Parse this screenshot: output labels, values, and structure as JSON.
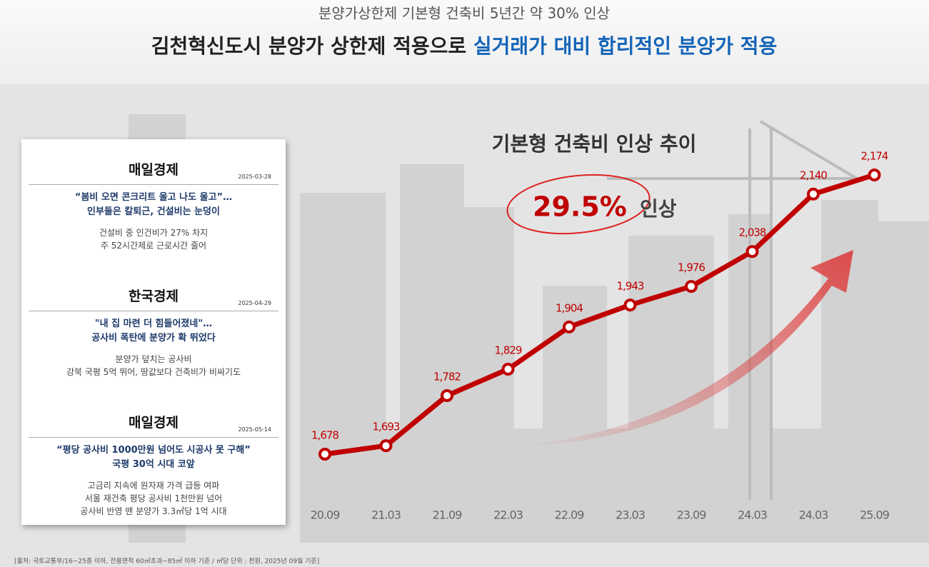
{
  "header": {
    "subtitle": "분양가상한제 기본형 건축비 5년간 약 30% 인상",
    "title_part1": "김천혁신도시 분양가 상한제 적용으로 ",
    "title_part2": "실거래가 대비 합리적인 분양가 적용"
  },
  "news": [
    {
      "outlet": "매일경제",
      "date": "2025-03-28",
      "headline": [
        "“봄비 오면 콘크리트 울고 나도 울고”…",
        "인부들은 칼퇴근, 건설비는 눈덩이"
      ],
      "body": [
        "건설비 중 인건비가 27% 차지",
        "주 52시간제로 근로시간 줄어"
      ]
    },
    {
      "outlet": "한국경제",
      "date": "2025-04-29",
      "headline": [
        "\"내 집 마련 더 힘들어졌네\"…",
        "공사비 폭탄에 분양가 확 뛰었다"
      ],
      "body": [
        "분양가 덮치는 공사비",
        "강북 국평 5억 뛰어, 땅값보다 건축비가 비싸기도"
      ]
    },
    {
      "outlet": "매일경제",
      "date": "2025-05-14",
      "headline": [
        "“평당 공사비 1000만원 넘어도 시공사 못 구해”",
        "국평 30억 시대 코앞"
      ],
      "body": [
        "고금리 지속에 원자재 가격 급등 여파",
        "서울 재건축 평당 공사비 1천만원 넘어",
        "공사비 반영 땐 분양가 3.3㎡당 1억 시대"
      ]
    }
  ],
  "chart_data": {
    "type": "line",
    "title": "기본형 건축비 인상 추이",
    "annotation_value": "29.5%",
    "annotation_text": "인상",
    "categories": [
      "20.09",
      "21.03",
      "21.09",
      "22.03",
      "22.09",
      "23.03",
      "23.09",
      "24.03",
      "24.03",
      "25.09"
    ],
    "values": [
      1678,
      1693,
      1782,
      1829,
      1904,
      1943,
      1976,
      2038,
      2140,
      2174
    ],
    "value_labels": [
      "1,678",
      "1,693",
      "1,782",
      "1,829",
      "1,904",
      "1,943",
      "1,976",
      "2,038",
      "2,140",
      "2,174"
    ],
    "color": "#c00000"
  },
  "source": "[출처: 국토교통부/16~25층 이하, 전용면적 60㎡초과~85㎡ 이하 기준 / ㎡당 단위 : 천원, 2025년 09월 기준]"
}
